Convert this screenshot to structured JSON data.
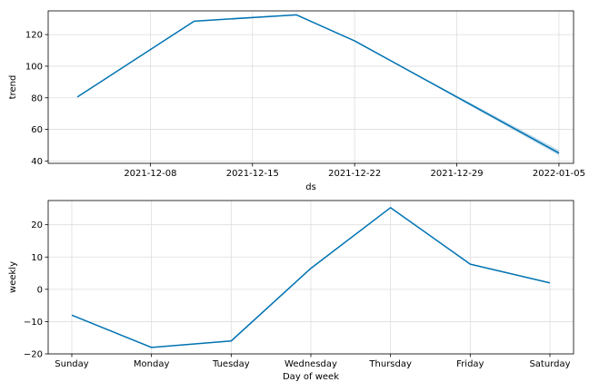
{
  "chart_data": [
    {
      "type": "line",
      "xlabel": "ds",
      "ylabel": "trend",
      "x_axis_kind": "date",
      "xlim": [
        "2021-12-01",
        "2022-01-06"
      ],
      "ylim": [
        38.5,
        135
      ],
      "yticks": [
        40,
        60,
        80,
        100,
        120
      ],
      "xticks": [
        "2021-12-08",
        "2021-12-15",
        "2021-12-22",
        "2021-12-29",
        "2022-01-05"
      ],
      "grid": true,
      "line_color": "#0072B2",
      "band_color": "#0072B2",
      "series": [
        {
          "x": [
            "2021-12-03",
            "2021-12-11",
            "2021-12-18",
            "2021-12-22",
            "2022-01-05"
          ],
          "values": [
            80.5,
            128.5,
            132.5,
            116,
            45
          ],
          "band_lower": [
            80.5,
            128.5,
            132.5,
            116,
            43.5
          ],
          "band_upper": [
            80.5,
            128.5,
            132.5,
            116,
            46.8
          ]
        }
      ]
    },
    {
      "type": "line",
      "xlabel": "Day of week",
      "ylabel": "weekly",
      "categories": [
        "Sunday",
        "Monday",
        "Tuesday",
        "Wednesday",
        "Thursday",
        "Friday",
        "Saturday"
      ],
      "ylim": [
        -20,
        27.5
      ],
      "yticks": [
        -20,
        -10,
        0,
        10,
        20
      ],
      "ytick_labels": [
        "−20",
        "−10",
        "0",
        "10",
        "20"
      ],
      "grid": true,
      "line_color": "#0072B2",
      "series": [
        {
          "values": [
            -8,
            -18,
            -16,
            6.5,
            25.3,
            7.8,
            2
          ]
        }
      ]
    }
  ]
}
